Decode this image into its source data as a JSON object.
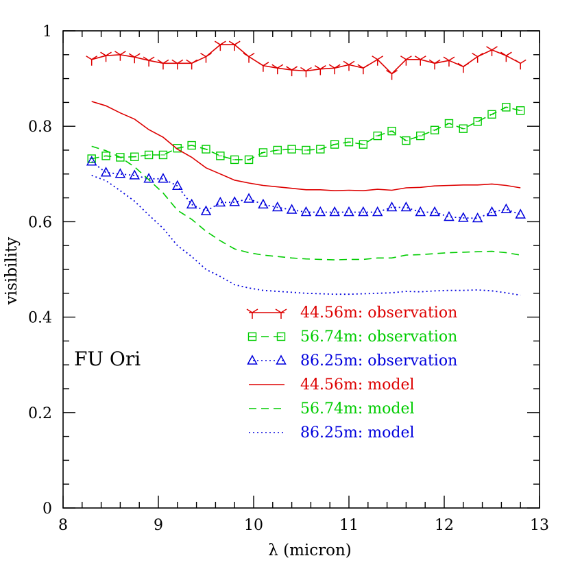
{
  "chart_data": {
    "type": "line",
    "xlabel": "λ (micron)",
    "ylabel": "visibility",
    "xlim": [
      8,
      13
    ],
    "ylim": [
      0,
      1
    ],
    "x_ticks": [
      "8",
      "9",
      "10",
      "11",
      "12",
      "13"
    ],
    "y_ticks": [
      "0",
      "0.2",
      "0.4",
      "0.6",
      "0.8",
      "1"
    ],
    "annotation": "FU  Ori",
    "legend_position": "lower-right",
    "series": [
      {
        "name": "44.56m: observation",
        "color": "#dd0000",
        "line": "solid",
        "marker": "tri-tick",
        "x": [
          8.3,
          8.45,
          8.6,
          8.75,
          8.9,
          9.05,
          9.2,
          9.35,
          9.5,
          9.65,
          9.8,
          9.95,
          10.1,
          10.25,
          10.4,
          10.55,
          10.7,
          10.85,
          11.0,
          11.15,
          11.3,
          11.45,
          11.6,
          11.75,
          11.9,
          12.05,
          12.2,
          12.35,
          12.5,
          12.65,
          12.8
        ],
        "y": [
          0.94,
          0.948,
          0.95,
          0.945,
          0.938,
          0.932,
          0.932,
          0.932,
          0.946,
          0.971,
          0.971,
          0.946,
          0.927,
          0.922,
          0.918,
          0.916,
          0.92,
          0.922,
          0.929,
          0.922,
          0.94,
          0.91,
          0.94,
          0.94,
          0.932,
          0.938,
          0.925,
          0.946,
          0.96,
          0.948,
          0.932
        ]
      },
      {
        "name": "56.74m: observation",
        "color": "#00cc00",
        "line": "dashed",
        "marker": "square",
        "x": [
          8.3,
          8.45,
          8.6,
          8.75,
          8.9,
          9.05,
          9.2,
          9.35,
          9.5,
          9.65,
          9.8,
          9.95,
          10.1,
          10.25,
          10.4,
          10.55,
          10.7,
          10.85,
          11.0,
          11.15,
          11.3,
          11.45,
          11.6,
          11.75,
          11.9,
          12.05,
          12.2,
          12.35,
          12.5,
          12.65,
          12.8
        ],
        "y": [
          0.732,
          0.738,
          0.735,
          0.736,
          0.74,
          0.74,
          0.754,
          0.76,
          0.752,
          0.738,
          0.73,
          0.73,
          0.745,
          0.75,
          0.752,
          0.75,
          0.752,
          0.762,
          0.767,
          0.762,
          0.78,
          0.79,
          0.77,
          0.78,
          0.792,
          0.806,
          0.795,
          0.81,
          0.825,
          0.84,
          0.833
        ]
      },
      {
        "name": "86.25m: observation",
        "color": "#0000dd",
        "line": "dotted",
        "marker": "triangle",
        "x": [
          8.3,
          8.45,
          8.6,
          8.75,
          8.9,
          9.05,
          9.2,
          9.35,
          9.5,
          9.65,
          9.8,
          9.95,
          10.1,
          10.25,
          10.4,
          10.55,
          10.7,
          10.85,
          11.0,
          11.15,
          11.3,
          11.45,
          11.6,
          11.75,
          11.9,
          12.05,
          12.2,
          12.35,
          12.5,
          12.65,
          12.8
        ],
        "y": [
          0.726,
          0.703,
          0.7,
          0.697,
          0.69,
          0.69,
          0.675,
          0.636,
          0.622,
          0.64,
          0.641,
          0.648,
          0.636,
          0.63,
          0.625,
          0.62,
          0.62,
          0.62,
          0.62,
          0.62,
          0.62,
          0.63,
          0.63,
          0.62,
          0.62,
          0.61,
          0.608,
          0.607,
          0.62,
          0.626,
          0.615
        ]
      },
      {
        "name": "44.56m: model",
        "color": "#dd0000",
        "line": "solid",
        "marker": "none",
        "x": [
          8.3,
          8.45,
          8.6,
          8.75,
          8.9,
          9.05,
          9.2,
          9.35,
          9.5,
          9.65,
          9.8,
          9.95,
          10.1,
          10.25,
          10.4,
          10.55,
          10.7,
          10.85,
          11.0,
          11.15,
          11.3,
          11.45,
          11.6,
          11.75,
          11.9,
          12.05,
          12.2,
          12.35,
          12.5,
          12.65,
          12.8
        ],
        "y": [
          0.852,
          0.843,
          0.828,
          0.815,
          0.793,
          0.777,
          0.752,
          0.735,
          0.713,
          0.7,
          0.687,
          0.681,
          0.676,
          0.673,
          0.67,
          0.667,
          0.667,
          0.665,
          0.666,
          0.665,
          0.668,
          0.666,
          0.671,
          0.672,
          0.675,
          0.676,
          0.677,
          0.677,
          0.679,
          0.676,
          0.671
        ]
      },
      {
        "name": "56.74m: model",
        "color": "#00cc00",
        "line": "dashed",
        "marker": "none",
        "x": [
          8.3,
          8.45,
          8.6,
          8.75,
          8.9,
          9.05,
          9.2,
          9.35,
          9.5,
          9.65,
          9.8,
          9.95,
          10.1,
          10.25,
          10.4,
          10.55,
          10.7,
          10.85,
          11.0,
          11.15,
          11.3,
          11.45,
          11.6,
          11.75,
          11.9,
          12.05,
          12.2,
          12.35,
          12.5,
          12.65,
          12.8
        ],
        "y": [
          0.758,
          0.749,
          0.735,
          0.715,
          0.688,
          0.66,
          0.624,
          0.605,
          0.58,
          0.56,
          0.543,
          0.535,
          0.53,
          0.527,
          0.524,
          0.522,
          0.521,
          0.52,
          0.521,
          0.521,
          0.524,
          0.524,
          0.53,
          0.531,
          0.533,
          0.535,
          0.536,
          0.537,
          0.538,
          0.535,
          0.53
        ]
      },
      {
        "name": "86.25m: model",
        "color": "#0000dd",
        "line": "dotted",
        "marker": "none",
        "x": [
          8.3,
          8.45,
          8.6,
          8.75,
          8.9,
          9.05,
          9.2,
          9.35,
          9.5,
          9.65,
          9.8,
          9.95,
          10.1,
          10.25,
          10.4,
          10.55,
          10.7,
          10.85,
          11.0,
          11.15,
          11.3,
          11.45,
          11.6,
          11.75,
          11.9,
          12.05,
          12.2,
          12.35,
          12.5,
          12.65,
          12.8
        ],
        "y": [
          0.697,
          0.686,
          0.665,
          0.643,
          0.614,
          0.586,
          0.55,
          0.527,
          0.5,
          0.485,
          0.468,
          0.461,
          0.456,
          0.454,
          0.452,
          0.45,
          0.449,
          0.448,
          0.448,
          0.449,
          0.45,
          0.451,
          0.454,
          0.453,
          0.455,
          0.456,
          0.456,
          0.457,
          0.455,
          0.451,
          0.446
        ]
      }
    ]
  }
}
